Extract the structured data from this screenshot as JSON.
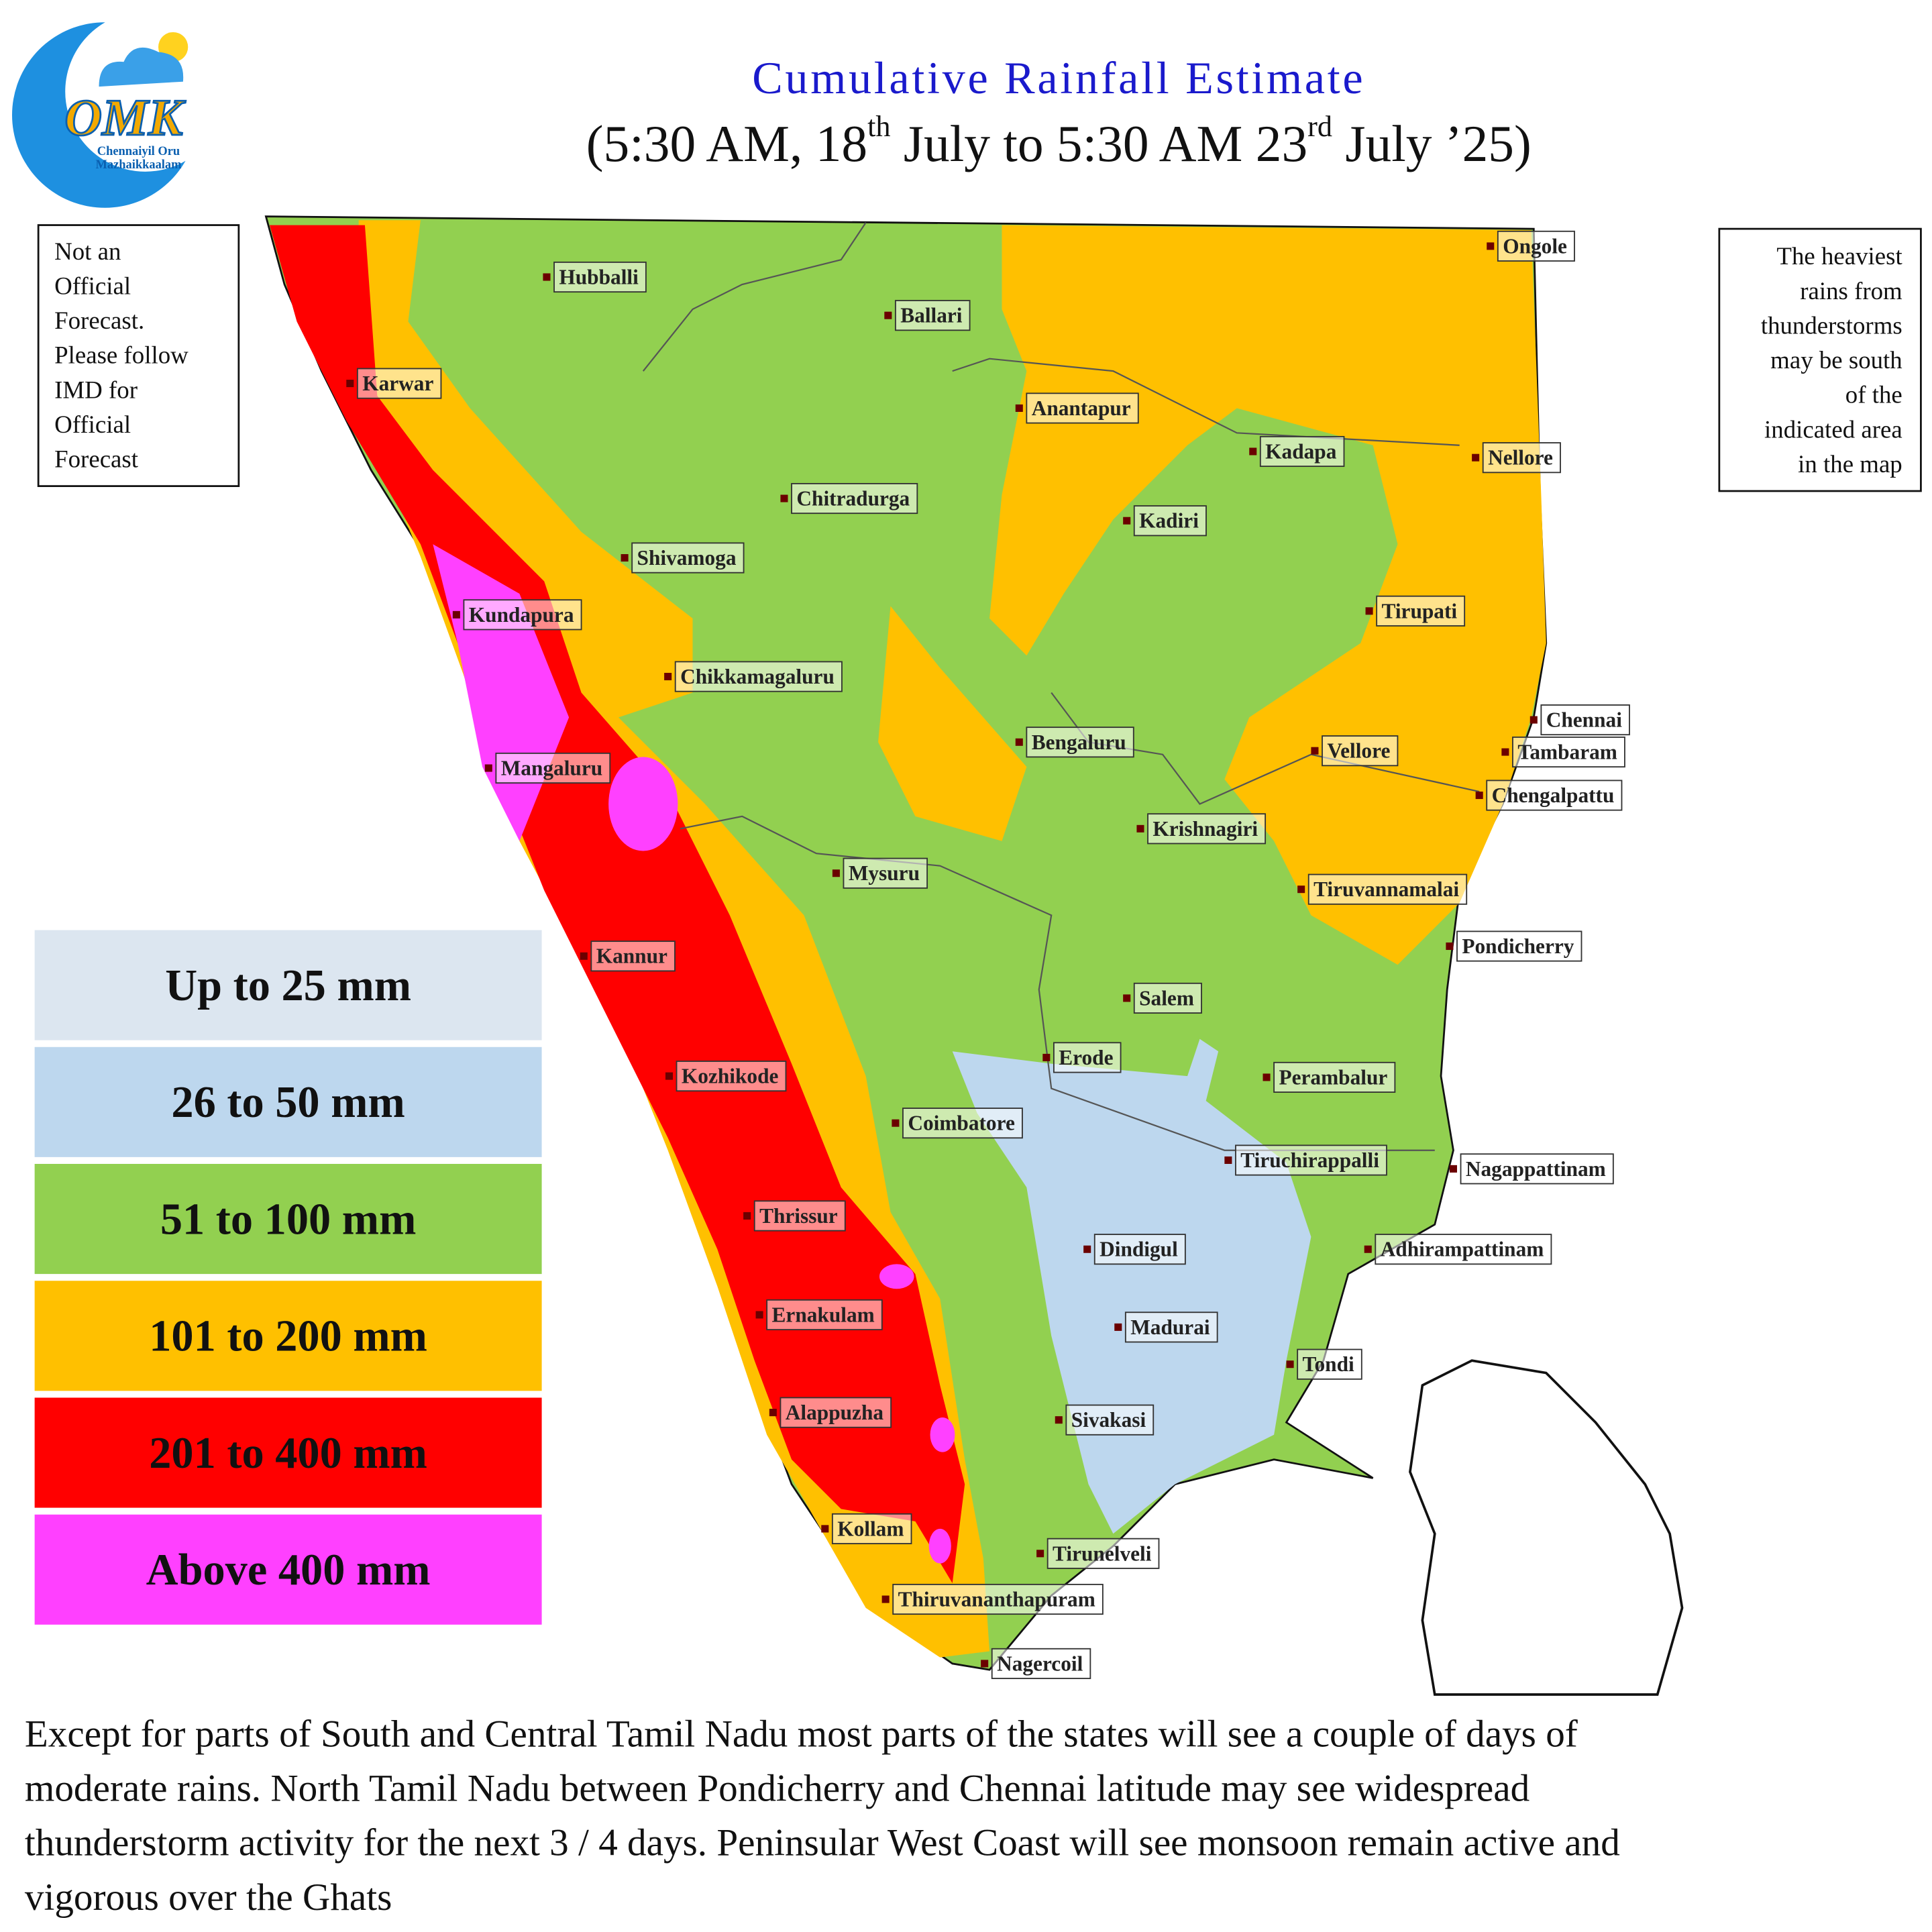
{
  "logo": {
    "mark": "OMK",
    "tagline": [
      "Chennaiyil Oru",
      "Mazhaikkaalam"
    ]
  },
  "header": {
    "title": "Cumulative Rainfall Estimate",
    "subtitle": [
      "(5:30 AM, 18",
      "th",
      " July to 5:30 AM 23",
      "rd",
      " July ’25)"
    ]
  },
  "notes": {
    "left": [
      "Not an",
      "Official",
      "Forecast.",
      "Please follow",
      "IMD for",
      "Official",
      "Forecast"
    ],
    "right": [
      "The heaviest",
      "rains from",
      "thunderstorms",
      "may be south",
      "of the",
      "indicated area",
      "in the map"
    ]
  },
  "legend": [
    {
      "label": "Up to 25 mm",
      "color": "#dce6f0"
    },
    {
      "label": "26 to 50 mm",
      "color": "#bdd7ee"
    },
    {
      "label": "51 to 100 mm",
      "color": "#92d050"
    },
    {
      "label": "101 to 200 mm",
      "color": "#ffc000"
    },
    {
      "label": "201 to 400 mm",
      "color": "#ff0000"
    },
    {
      "label": "Above 400 mm",
      "color": "#ff40ff"
    }
  ],
  "cities": [
    "Hubballi",
    "Ballari",
    "Ongole",
    "Karwar",
    "Anantapur",
    "Kadapa",
    "Nellore",
    "Chitradurga",
    "Kadiri",
    "Shivamoga",
    "Kundapura",
    "Tirupati",
    "Chikkamagaluru",
    "Chennai",
    "Bengaluru",
    "Vellore",
    "Tambaram",
    "Mangaluru",
    "Chengalpattu",
    "Krishnagiri",
    "Mysuru",
    "Tiruvannamalai",
    "Pondicherry",
    "Kannur",
    "Salem",
    "Erode",
    "Perambalur",
    "Kozhikode",
    "Coimbatore",
    "Tiruchirappalli",
    "Nagappattinam",
    "Thrissur",
    "Dindigul",
    "Adhirampattinam",
    "Ernakulam",
    "Madurai",
    "Tondi",
    "Alappuzha",
    "Sivakasi",
    "Kollam",
    "Tirunelveli",
    "Thiruvananthapuram",
    "Nagercoil"
  ],
  "summary": [
    "Except for parts of South and Central Tamil Nadu most parts of the states will see a couple of days of",
    "moderate rains. North Tamil Nadu between Pondicherry and Chennai latitude may see widespread",
    "thunderstorm activity for the next 3 / 4 days. Peninsular West Coast will see monsoon remain active and",
    "vigorous over the Ghats"
  ]
}
